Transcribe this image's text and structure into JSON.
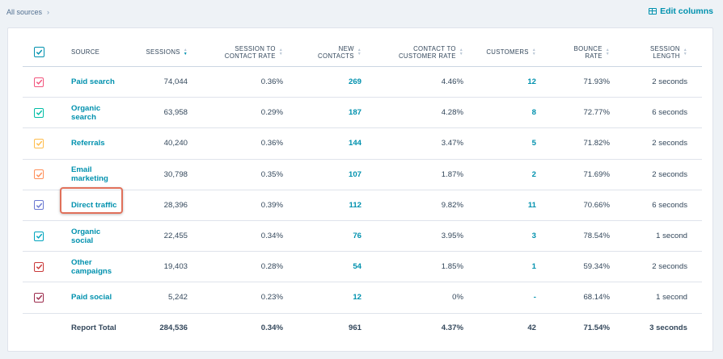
{
  "breadcrumb": {
    "label": "All sources",
    "chevron": "›"
  },
  "edit_columns": {
    "label": "Edit columns",
    "icon": "columns-icon"
  },
  "columns": {
    "source": "SOURCE",
    "sessions": "SESSIONS",
    "session_to_contact_1": "SESSION TO",
    "session_to_contact_2": "CONTACT RATE",
    "new_contacts_1": "NEW",
    "new_contacts_2": "CONTACTS",
    "contact_to_customer_1": "CONTACT TO",
    "contact_to_customer_2": "CUSTOMER RATE",
    "customers": "CUSTOMERS",
    "bounce_1": "BOUNCE",
    "bounce_2": "RATE",
    "length_1": "SESSION",
    "length_2": "LENGTH"
  },
  "rows": [
    {
      "source_1": "Paid search",
      "source_2": "",
      "sessions": "74,044",
      "session_to_contact": "0.36%",
      "new_contacts": "269",
      "contact_to_customer": "4.46%",
      "customers": "12",
      "bounce": "71.93%",
      "length": "2 seconds",
      "color": "#f2547d"
    },
    {
      "source_1": "Organic",
      "source_2": "search",
      "sessions": "63,958",
      "session_to_contact": "0.29%",
      "new_contacts": "187",
      "contact_to_customer": "4.28%",
      "customers": "8",
      "bounce": "72.77%",
      "length": "6 seconds",
      "color": "#00bda5"
    },
    {
      "source_1": "Referrals",
      "source_2": "",
      "sessions": "40,240",
      "session_to_contact": "0.36%",
      "new_contacts": "144",
      "contact_to_customer": "3.47%",
      "customers": "5",
      "bounce": "71.82%",
      "length": "2 seconds",
      "color": "#ffbc4b"
    },
    {
      "source_1": "Email",
      "source_2": "marketing",
      "sessions": "30,798",
      "session_to_contact": "0.35%",
      "new_contacts": "107",
      "contact_to_customer": "1.87%",
      "customers": "2",
      "bounce": "71.69%",
      "length": "2 seconds",
      "color": "#ff8f59"
    },
    {
      "source_1": "Direct traffic",
      "source_2": "",
      "sessions": "28,396",
      "session_to_contact": "0.39%",
      "new_contacts": "112",
      "contact_to_customer": "9.82%",
      "customers": "11",
      "bounce": "70.66%",
      "length": "6 seconds",
      "color": "#6a78d1"
    },
    {
      "source_1": "Organic",
      "source_2": "social",
      "sessions": "22,455",
      "session_to_contact": "0.34%",
      "new_contacts": "76",
      "contact_to_customer": "3.95%",
      "customers": "3",
      "bounce": "78.54%",
      "length": "1 second",
      "color": "#00a4bd"
    },
    {
      "source_1": "Other",
      "source_2": "campaigns",
      "sessions": "19,403",
      "session_to_contact": "0.28%",
      "new_contacts": "54",
      "contact_to_customer": "1.85%",
      "customers": "1",
      "bounce": "59.34%",
      "length": "2 seconds",
      "color": "#c93838"
    },
    {
      "source_1": "Paid social",
      "source_2": "",
      "sessions": "5,242",
      "session_to_contact": "0.23%",
      "new_contacts": "12",
      "contact_to_customer": "0%",
      "customers": "-",
      "bounce": "68.14%",
      "length": "1 second",
      "color": "#9c2b4c"
    }
  ],
  "total": {
    "label": "Report Total",
    "sessions": "284,536",
    "session_to_contact": "0.34%",
    "new_contacts": "961",
    "contact_to_customer": "4.37%",
    "customers": "42",
    "bounce": "71.54%",
    "length": "3 seconds"
  },
  "colors": {
    "accent": "#0091ae",
    "highlight": "#e0705a"
  }
}
